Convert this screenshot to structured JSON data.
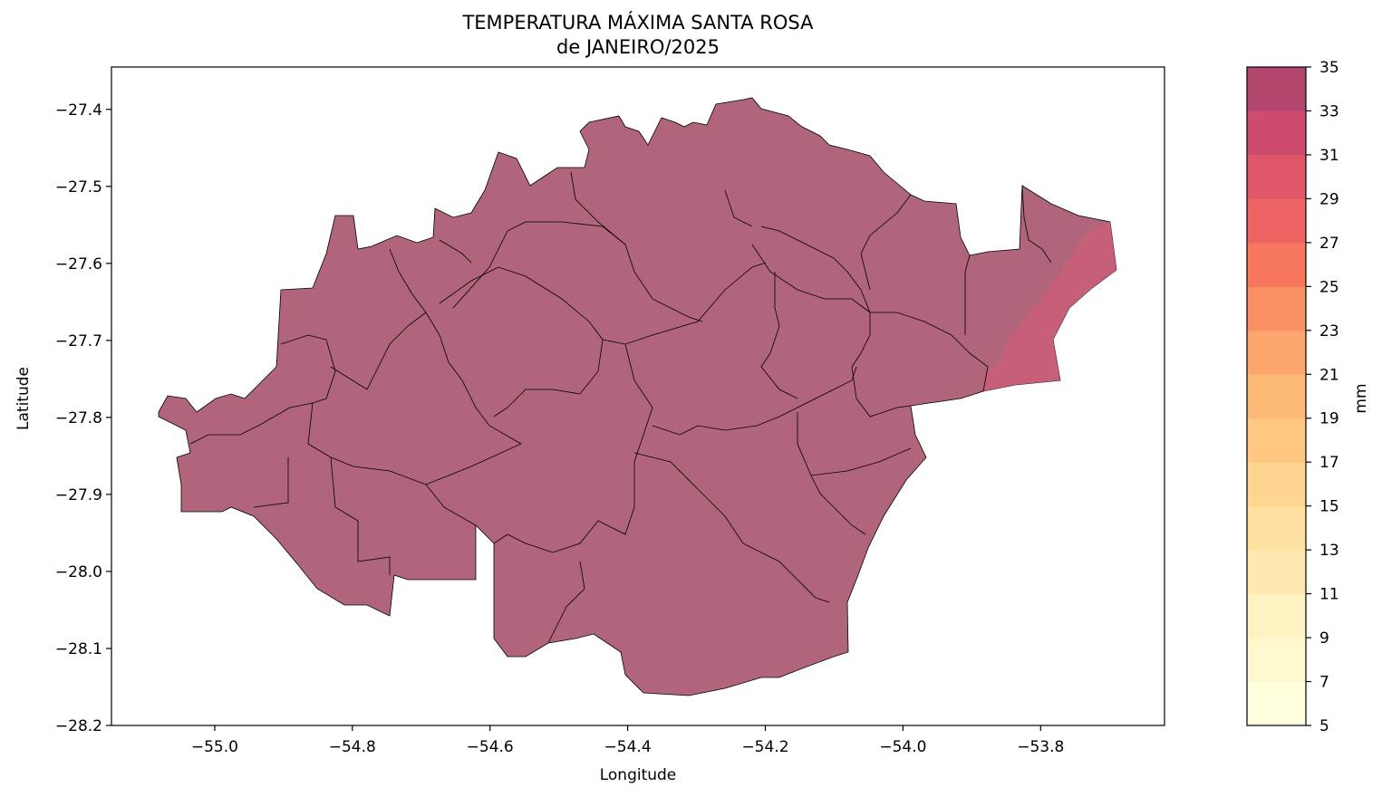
{
  "title": {
    "line1": "TEMPERATURA MÁXIMA SANTA ROSA",
    "line2": "de JANEIRO/2025"
  },
  "chart_data": {
    "type": "heatmap",
    "xlabel": "Longitude",
    "ylabel": "Latitude",
    "xlim": [
      -55.15,
      -53.62
    ],
    "ylim": [
      -28.2,
      -27.345
    ],
    "xticks": [
      {
        "value": -55.0,
        "label": "−55.0"
      },
      {
        "value": -54.8,
        "label": "−54.8"
      },
      {
        "value": -54.6,
        "label": "−54.6"
      },
      {
        "value": -54.4,
        "label": "−54.4"
      },
      {
        "value": -54.2,
        "label": "−54.2"
      },
      {
        "value": -54.0,
        "label": "−54.0"
      },
      {
        "value": -53.8,
        "label": "−53.8"
      }
    ],
    "yticks": [
      {
        "value": -27.4,
        "label": "−27.4"
      },
      {
        "value": -27.5,
        "label": "−27.5"
      },
      {
        "value": -27.6,
        "label": "−27.6"
      },
      {
        "value": -27.7,
        "label": "−27.7"
      },
      {
        "value": -27.8,
        "label": "−27.8"
      },
      {
        "value": -27.9,
        "label": "−27.9"
      },
      {
        "value": -28.0,
        "label": "−28.0"
      },
      {
        "value": -28.1,
        "label": "−28.1"
      },
      {
        "value": -28.2,
        "label": "−28.2"
      }
    ],
    "colorbar": {
      "label": "mm",
      "levels": [
        5,
        7,
        9,
        11,
        13,
        15,
        17,
        19,
        21,
        23,
        25,
        27,
        29,
        31,
        33,
        35
      ],
      "colors": [
        "#ffffdd",
        "#fff8cf",
        "#fff1c1",
        "#ffe9b1",
        "#fee0a0",
        "#fed591",
        "#fec883",
        "#fdba77",
        "#fca56c",
        "#fb8f64",
        "#f7775e",
        "#ed6462",
        "#df5769",
        "#cc4b6f",
        "#b3466f"
      ]
    },
    "region": {
      "dominant_class": [
        33,
        35
      ],
      "dominant_color": "#b0657a",
      "east_class": [
        31,
        33
      ],
      "east_color": "#c95f78"
    }
  }
}
